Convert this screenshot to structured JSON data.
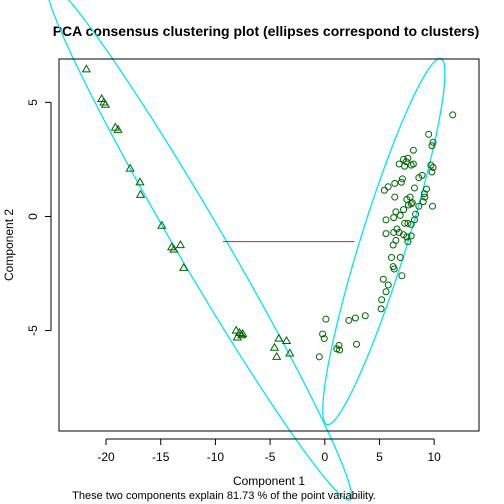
{
  "chart_data": {
    "type": "scatter",
    "title": "PCA consensus clustering plot (ellipses correspond to clusters)",
    "xlabel": "Component 1",
    "ylabel": "Component 2",
    "footnote": "These two components explain 81.73 % of the point variability.",
    "xlim": [
      -24.3,
      14.1
    ],
    "ylim": [
      -9.4,
      6.9
    ],
    "xticks": [
      -20,
      -15,
      -10,
      -5,
      0,
      5,
      10
    ],
    "yticks": [
      -5,
      0,
      5
    ],
    "grid": false,
    "colors": {
      "points": "#006400",
      "ellipse": "#00e5ee",
      "centroid_link": "#cc00cc",
      "axes": "#000000"
    },
    "series": [
      {
        "marker": "triangle",
        "points": [
          [
            -21.8,
            6.45
          ],
          [
            -20.4,
            5.15
          ],
          [
            -20.2,
            5.0
          ],
          [
            -20.05,
            4.9
          ],
          [
            -19.15,
            3.9
          ],
          [
            -18.9,
            3.8
          ],
          [
            -17.8,
            2.1
          ],
          [
            -16.9,
            1.5
          ],
          [
            -16.85,
            0.95
          ],
          [
            -14.9,
            -0.4
          ],
          [
            -14.0,
            -1.35
          ],
          [
            -13.8,
            -1.45
          ],
          [
            -13.2,
            -1.25
          ],
          [
            -12.9,
            -2.25
          ],
          [
            -8.1,
            -5.0
          ],
          [
            -8.0,
            -5.3
          ],
          [
            -7.8,
            -5.1
          ],
          [
            -7.6,
            -5.2
          ],
          [
            -7.5,
            -5.15
          ],
          [
            -4.6,
            -5.75
          ],
          [
            -4.4,
            -6.15
          ],
          [
            -4.2,
            -5.35
          ],
          [
            -3.5,
            -5.45
          ],
          [
            -3.2,
            -6.0
          ]
        ]
      },
      {
        "marker": "circle",
        "points": [
          [
            11.7,
            4.45
          ],
          [
            9.5,
            3.6
          ],
          [
            9.9,
            3.25
          ],
          [
            9.8,
            3.1
          ],
          [
            8.1,
            2.9
          ],
          [
            7.2,
            2.5
          ],
          [
            7.6,
            2.55
          ],
          [
            7.45,
            2.4
          ],
          [
            6.8,
            2.3
          ],
          [
            7.3,
            2.2
          ],
          [
            7.9,
            2.25
          ],
          [
            8.1,
            2.3
          ],
          [
            9.7,
            2.25
          ],
          [
            9.9,
            2.15
          ],
          [
            9.8,
            1.95
          ],
          [
            8.9,
            1.8
          ],
          [
            8.6,
            1.7
          ],
          [
            7.1,
            1.65
          ],
          [
            7.0,
            1.5
          ],
          [
            5.8,
            1.3
          ],
          [
            6.4,
            1.45
          ],
          [
            8.2,
            1.25
          ],
          [
            9.3,
            1.2
          ],
          [
            5.45,
            1.15
          ],
          [
            9.1,
            1.0
          ],
          [
            7.8,
            0.85
          ],
          [
            6.4,
            0.85
          ],
          [
            7.5,
            0.75
          ],
          [
            8.0,
            0.6
          ],
          [
            7.9,
            0.55
          ],
          [
            9.15,
            0.85
          ],
          [
            9.0,
            0.65
          ],
          [
            8.6,
            0.45
          ],
          [
            7.65,
            0.5
          ],
          [
            9.85,
            0.45
          ],
          [
            7.2,
            0.3
          ],
          [
            6.5,
            0.2
          ],
          [
            6.9,
            0.05
          ],
          [
            6.3,
            -0.05
          ],
          [
            8.3,
            0.1
          ],
          [
            8.2,
            -0.15
          ],
          [
            5.6,
            -0.15
          ],
          [
            7.6,
            -0.3
          ],
          [
            7.9,
            -0.35
          ],
          [
            7.3,
            -0.3
          ],
          [
            6.6,
            -0.55
          ],
          [
            6.3,
            -0.7
          ],
          [
            6.8,
            -0.7
          ],
          [
            5.6,
            -0.75
          ],
          [
            7.2,
            -0.8
          ],
          [
            7.5,
            -0.9
          ],
          [
            7.9,
            -0.85
          ],
          [
            6.5,
            -1.05
          ],
          [
            6.25,
            -1.25
          ],
          [
            7.6,
            -1.1
          ],
          [
            6.1,
            -1.8
          ],
          [
            6.9,
            -1.8
          ],
          [
            6.25,
            -2.2
          ],
          [
            6.35,
            -2.3
          ],
          [
            7.05,
            -2.6
          ],
          [
            5.8,
            -3.0
          ],
          [
            5.35,
            -2.75
          ],
          [
            5.6,
            -3.3
          ],
          [
            5.2,
            -3.65
          ],
          [
            5.15,
            -4.05
          ],
          [
            3.7,
            -4.35
          ],
          [
            2.8,
            -4.45
          ],
          [
            2.2,
            -4.55
          ],
          [
            2.9,
            -5.6
          ],
          [
            1.3,
            -5.65
          ],
          [
            1.35,
            -5.85
          ],
          [
            1.1,
            -5.8
          ],
          [
            0.1,
            -4.5
          ],
          [
            -0.2,
            -5.15
          ],
          [
            -0.05,
            -5.35
          ],
          [
            -0.5,
            -6.15
          ]
        ]
      }
    ],
    "ellipses": [
      {
        "center": [
          -11.5,
          -1.1
        ],
        "semi_major": 17.9,
        "semi_minor": 1.6,
        "angle_deg": -39
      },
      {
        "center": [
          5.4,
          -1.1
        ],
        "semi_major": 9.6,
        "semi_minor": 1.85,
        "angle_deg": 56
      }
    ],
    "centroid_link": {
      "from": [
        -9.3,
        -1.1
      ],
      "to": [
        2.7,
        -1.1
      ]
    }
  }
}
